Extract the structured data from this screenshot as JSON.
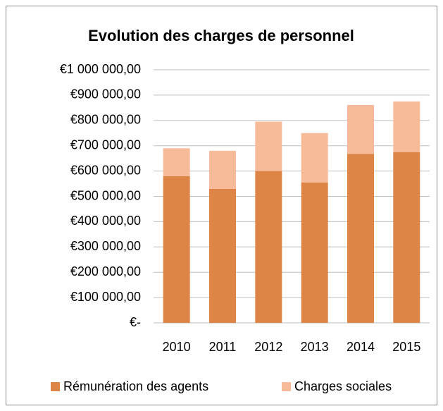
{
  "chart_data": {
    "type": "stacked_bar",
    "title": "Evolution des charges de personnel",
    "categories": [
      "2010",
      "2011",
      "2012",
      "2013",
      "2014",
      "2015"
    ],
    "series": [
      {
        "name": "Rémunération des agents",
        "color": "#dd8447",
        "values": [
          580000,
          530000,
          600000,
          555000,
          668000,
          675000
        ]
      },
      {
        "name": "Charges sociales",
        "color": "#f8bb9a",
        "values": [
          110000,
          150000,
          195000,
          195000,
          193000,
          200000
        ]
      }
    ],
    "ylim": [
      0,
      1000000
    ],
    "yticks": [
      {
        "value": 0,
        "label": "€-"
      },
      {
        "value": 100000,
        "label": "€100 000,00"
      },
      {
        "value": 200000,
        "label": "€200 000,00"
      },
      {
        "value": 300000,
        "label": "€300 000,00"
      },
      {
        "value": 400000,
        "label": "€400 000,00"
      },
      {
        "value": 500000,
        "label": "€500 000,00"
      },
      {
        "value": 600000,
        "label": "€600 000,00"
      },
      {
        "value": 700000,
        "label": "€700 000,00"
      },
      {
        "value": 800000,
        "label": "€800 000,00"
      },
      {
        "value": 900000,
        "label": "€900 000,00"
      },
      {
        "value": 1000000,
        "label": "€1 000 000,00"
      }
    ],
    "grid": true,
    "legend": "bottom"
  }
}
